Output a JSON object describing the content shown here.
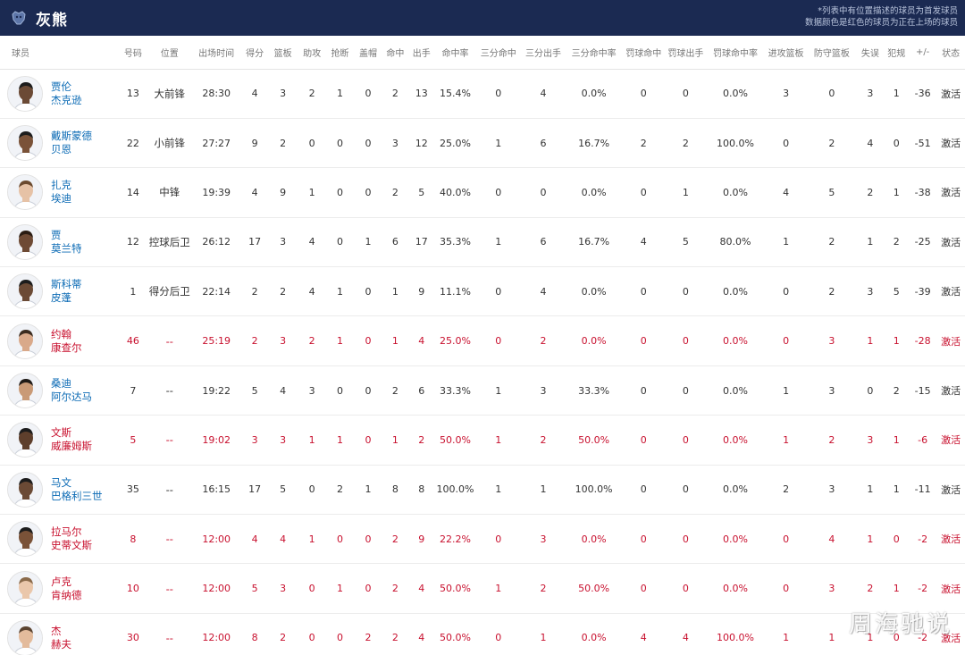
{
  "header": {
    "team_name": "灰熊",
    "note_line1": "*列表中有位置描述的球员为首发球员",
    "note_line2": "数据颜色是红色的球员为正在上场的球员"
  },
  "columns": [
    "球员",
    "号码",
    "位置",
    "出场时间",
    "得分",
    "篮板",
    "助攻",
    "抢断",
    "盖帽",
    "命中",
    "出手",
    "命中率",
    "三分命中",
    "三分出手",
    "三分命中率",
    "罚球命中",
    "罚球出手",
    "罚球命中率",
    "进攻篮板",
    "防守篮板",
    "失误",
    "犯规",
    "+/-",
    "状态"
  ],
  "colors": {
    "header_bg": "#1b2a52",
    "name_blue": "#0c6bb5",
    "on_court_red": "#c8102e"
  },
  "players": [
    {
      "first": "贾伦",
      "last": "杰克逊",
      "num": "13",
      "pos": "大前锋",
      "min": "28:30",
      "pts": "4",
      "reb": "3",
      "ast": "2",
      "stl": "1",
      "blk": "0",
      "fgm": "2",
      "fga": "13",
      "fgp": "15.4%",
      "tpm": "0",
      "tpa": "4",
      "tpp": "0.0%",
      "ftm": "0",
      "fta": "0",
      "ftp": "0.0%",
      "oreb": "3",
      "dreb": "0",
      "tov": "3",
      "pf": "1",
      "pm": "-36",
      "status": "激活",
      "on_court": false,
      "skin": "#6b4a35",
      "hair": "#1c1c1c"
    },
    {
      "first": "戴斯蒙德",
      "last": "贝恩",
      "num": "22",
      "pos": "小前锋",
      "min": "27:27",
      "pts": "9",
      "reb": "2",
      "ast": "0",
      "stl": "0",
      "blk": "0",
      "fgm": "3",
      "fga": "12",
      "fgp": "25.0%",
      "tpm": "1",
      "tpa": "6",
      "tpp": "16.7%",
      "ftm": "2",
      "fta": "2",
      "ftp": "100.0%",
      "oreb": "0",
      "dreb": "2",
      "tov": "4",
      "pf": "0",
      "pm": "-51",
      "status": "激活",
      "on_court": false,
      "skin": "#7a5238",
      "hair": "#1c1c1c"
    },
    {
      "first": "扎克",
      "last": "埃迪",
      "num": "14",
      "pos": "中锋",
      "min": "19:39",
      "pts": "4",
      "reb": "9",
      "ast": "1",
      "stl": "0",
      "blk": "0",
      "fgm": "2",
      "fga": "5",
      "fgp": "40.0%",
      "tpm": "0",
      "tpa": "0",
      "tpp": "0.0%",
      "ftm": "0",
      "fta": "1",
      "ftp": "0.0%",
      "oreb": "4",
      "dreb": "5",
      "tov": "2",
      "pf": "1",
      "pm": "-38",
      "status": "激活",
      "on_court": false,
      "skin": "#e6c2a6",
      "hair": "#6b4a2e"
    },
    {
      "first": "贾",
      "last": "莫兰特",
      "num": "12",
      "pos": "控球后卫",
      "min": "26:12",
      "pts": "17",
      "reb": "3",
      "ast": "4",
      "stl": "0",
      "blk": "1",
      "fgm": "6",
      "fga": "17",
      "fgp": "35.3%",
      "tpm": "1",
      "tpa": "6",
      "tpp": "16.7%",
      "ftm": "4",
      "fta": "5",
      "ftp": "80.0%",
      "oreb": "1",
      "dreb": "2",
      "tov": "1",
      "pf": "2",
      "pm": "-25",
      "status": "激活",
      "on_court": false,
      "skin": "#6e4a34",
      "hair": "#2a1c12"
    },
    {
      "first": "斯科蒂",
      "last": "皮蓬",
      "num": "1",
      "pos": "得分后卫",
      "min": "22:14",
      "pts": "2",
      "reb": "2",
      "ast": "4",
      "stl": "1",
      "blk": "0",
      "fgm": "1",
      "fga": "9",
      "fgp": "11.1%",
      "tpm": "0",
      "tpa": "4",
      "tpp": "0.0%",
      "ftm": "0",
      "fta": "0",
      "ftp": "0.0%",
      "oreb": "0",
      "dreb": "2",
      "tov": "3",
      "pf": "5",
      "pm": "-39",
      "status": "激活",
      "on_court": false,
      "skin": "#6b4a35",
      "hair": "#1c1c1c"
    },
    {
      "first": "约翰",
      "last": "康查尔",
      "num": "46",
      "pos": "--",
      "min": "25:19",
      "pts": "2",
      "reb": "3",
      "ast": "2",
      "stl": "1",
      "blk": "0",
      "fgm": "1",
      "fga": "4",
      "fgp": "25.0%",
      "tpm": "0",
      "tpa": "2",
      "tpp": "0.0%",
      "ftm": "0",
      "fta": "0",
      "ftp": "0.0%",
      "oreb": "0",
      "dreb": "3",
      "tov": "1",
      "pf": "1",
      "pm": "-28",
      "status": "激活",
      "on_court": true,
      "skin": "#d9a98a",
      "hair": "#3a2a1e"
    },
    {
      "first": "桑迪",
      "last": "阿尔达马",
      "num": "7",
      "pos": "--",
      "min": "19:22",
      "pts": "5",
      "reb": "4",
      "ast": "3",
      "stl": "0",
      "blk": "0",
      "fgm": "2",
      "fga": "6",
      "fgp": "33.3%",
      "tpm": "1",
      "tpa": "3",
      "tpp": "33.3%",
      "ftm": "0",
      "fta": "0",
      "ftp": "0.0%",
      "oreb": "1",
      "dreb": "3",
      "tov": "0",
      "pf": "2",
      "pm": "-15",
      "status": "激活",
      "on_court": false,
      "skin": "#c99a76",
      "hair": "#1f1a16"
    },
    {
      "first": "文斯",
      "last": "威廉姆斯",
      "num": "5",
      "pos": "--",
      "min": "19:02",
      "pts": "3",
      "reb": "3",
      "ast": "1",
      "stl": "1",
      "blk": "0",
      "fgm": "1",
      "fga": "2",
      "fgp": "50.0%",
      "tpm": "1",
      "tpa": "2",
      "tpp": "50.0%",
      "ftm": "0",
      "fta": "0",
      "ftp": "0.0%",
      "oreb": "1",
      "dreb": "2",
      "tov": "3",
      "pf": "1",
      "pm": "-6",
      "status": "激活",
      "on_court": true,
      "skin": "#5e3f2c",
      "hair": "#1c1c1c"
    },
    {
      "first": "马文",
      "last": "巴格利三世",
      "num": "35",
      "pos": "--",
      "min": "16:15",
      "pts": "17",
      "reb": "5",
      "ast": "0",
      "stl": "2",
      "blk": "1",
      "fgm": "8",
      "fga": "8",
      "fgp": "100.0%",
      "tpm": "1",
      "tpa": "1",
      "tpp": "100.0%",
      "ftm": "0",
      "fta": "0",
      "ftp": "0.0%",
      "oreb": "2",
      "dreb": "3",
      "tov": "1",
      "pf": "1",
      "pm": "-11",
      "status": "激活",
      "on_court": false,
      "skin": "#6b4a35",
      "hair": "#1c1c1c"
    },
    {
      "first": "拉马尔",
      "last": "史蒂文斯",
      "num": "8",
      "pos": "--",
      "min": "12:00",
      "pts": "4",
      "reb": "4",
      "ast": "1",
      "stl": "0",
      "blk": "0",
      "fgm": "2",
      "fga": "9",
      "fgp": "22.2%",
      "tpm": "0",
      "tpa": "3",
      "tpp": "0.0%",
      "ftm": "0",
      "fta": "0",
      "ftp": "0.0%",
      "oreb": "0",
      "dreb": "4",
      "tov": "1",
      "pf": "0",
      "pm": "-2",
      "status": "激活",
      "on_court": true,
      "skin": "#7a5238",
      "hair": "#1c1c1c"
    },
    {
      "first": "卢克",
      "last": "肯纳德",
      "num": "10",
      "pos": "--",
      "min": "12:00",
      "pts": "5",
      "reb": "3",
      "ast": "0",
      "stl": "1",
      "blk": "0",
      "fgm": "2",
      "fga": "4",
      "fgp": "50.0%",
      "tpm": "1",
      "tpa": "2",
      "tpp": "50.0%",
      "ftm": "0",
      "fta": "0",
      "ftp": "0.0%",
      "oreb": "0",
      "dreb": "3",
      "tov": "2",
      "pf": "1",
      "pm": "-2",
      "status": "激活",
      "on_court": true,
      "skin": "#eac7ab",
      "hair": "#8a6a4a"
    },
    {
      "first": "杰",
      "last": "赫夫",
      "num": "30",
      "pos": "--",
      "min": "12:00",
      "pts": "8",
      "reb": "2",
      "ast": "0",
      "stl": "0",
      "blk": "2",
      "fgm": "2",
      "fga": "4",
      "fgp": "50.0%",
      "tpm": "0",
      "tpa": "1",
      "tpp": "0.0%",
      "ftm": "4",
      "fta": "4",
      "ftp": "100.0%",
      "oreb": "1",
      "dreb": "1",
      "tov": "1",
      "pf": "0",
      "pm": "-2",
      "status": "激活",
      "on_court": true,
      "skin": "#e3bb9c",
      "hair": "#5a4330"
    }
  ],
  "watermark": "周海驰说"
}
